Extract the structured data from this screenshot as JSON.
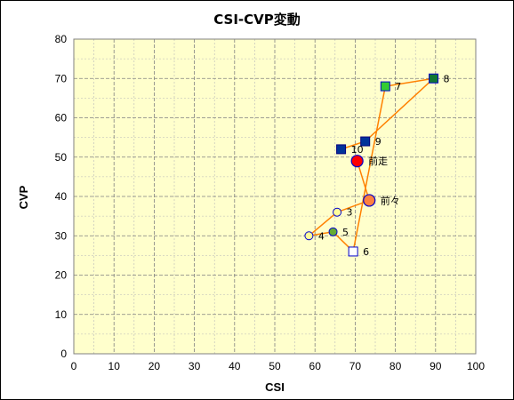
{
  "chart_data": {
    "type": "scatter",
    "title": "CSI-CVP変動",
    "xlabel": "CSI",
    "ylabel": "CVP",
    "xlim": [
      0,
      100
    ],
    "ylim": [
      0,
      80
    ],
    "x_ticks": [
      0,
      10,
      20,
      30,
      40,
      50,
      60,
      70,
      80,
      90,
      100
    ],
    "y_ticks": [
      0,
      10,
      20,
      30,
      40,
      50,
      60,
      70,
      80
    ],
    "grid": true,
    "minor_grid": true,
    "plot_background": "#FFFFCC",
    "line_color": "#FF8000",
    "path_order": [
      "10",
      "9",
      "8",
      "7",
      "6",
      "5",
      "4",
      "3",
      "前々",
      "前走"
    ],
    "points": [
      {
        "label": "前走",
        "x": 70.5,
        "y": 49,
        "marker": "circle-large",
        "fill": "#FF0000",
        "stroke": "#0000CC"
      },
      {
        "label": "前々",
        "x": 73.5,
        "y": 39,
        "marker": "circle-large",
        "fill": "#FF8040",
        "stroke": "#0000CC"
      },
      {
        "label": "3",
        "x": 65.5,
        "y": 36,
        "marker": "circle",
        "fill": "#FFFF99",
        "stroke": "#0000CC"
      },
      {
        "label": "4",
        "x": 58.5,
        "y": 30,
        "marker": "circle",
        "fill": "#FFFF99",
        "stroke": "#0000CC"
      },
      {
        "label": "5",
        "x": 64.5,
        "y": 31,
        "marker": "circle",
        "fill": "#66AA33",
        "stroke": "#0000CC"
      },
      {
        "label": "6",
        "x": 69.5,
        "y": 26,
        "marker": "square",
        "fill": "#FFFFFF",
        "stroke": "#0000CC"
      },
      {
        "label": "7",
        "x": 77.5,
        "y": 68,
        "marker": "square",
        "fill": "#33CC33",
        "stroke": "#0000CC"
      },
      {
        "label": "8",
        "x": 89.5,
        "y": 70,
        "marker": "square",
        "fill": "#117733",
        "stroke": "#0000CC"
      },
      {
        "label": "9",
        "x": 72.5,
        "y": 54,
        "marker": "square",
        "fill": "#003399",
        "stroke": "#000080"
      },
      {
        "label": "10",
        "x": 66.5,
        "y": 52,
        "marker": "square",
        "fill": "#003399",
        "stroke": "#000080"
      }
    ]
  }
}
